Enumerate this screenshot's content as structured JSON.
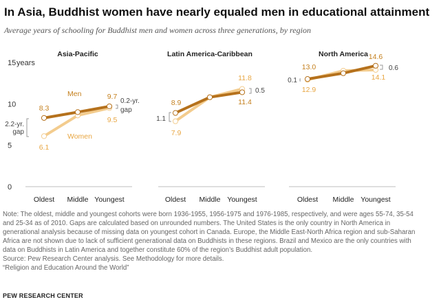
{
  "title": "In Asia, Buddhist women have nearly equaled men in educational attainment",
  "subtitle": "Average years of schooling for Buddhist men and women across three generations, by region",
  "colors": {
    "men": "#b5711c",
    "women": "#f3cc8e",
    "men_label": "#c47f1c",
    "women_label": "#e8a642",
    "axis": "#bdbdbd"
  },
  "y_tick_labels": [
    "15",
    "10",
    "5",
    "0"
  ],
  "y_unit": "years",
  "chart_data": {
    "type": "line",
    "ylim": [
      0,
      15
    ],
    "categories": [
      "Oldest",
      "Middle",
      "Youngest"
    ],
    "panels": [
      {
        "title": "Asia-Pacific",
        "series": [
          {
            "name": "Men",
            "values": [
              8.3,
              9.0,
              9.7
            ],
            "labels": [
              "8.3",
              "",
              "9.7"
            ]
          },
          {
            "name": "Women",
            "values": [
              6.1,
              8.6,
              9.5
            ],
            "labels": [
              "6.1",
              "",
              "9.5"
            ]
          }
        ],
        "annotations": [
          "2.2-yr.",
          "gap",
          "0.2-yr.",
          "gap"
        ]
      },
      {
        "title": "Latin America-Caribbean",
        "series": [
          {
            "name": "Men",
            "values": [
              8.9,
              10.8,
              11.4
            ],
            "labels": [
              "8.9",
              "",
              "11.4"
            ]
          },
          {
            "name": "Women",
            "values": [
              7.9,
              10.8,
              11.8
            ],
            "labels": [
              "7.9",
              "",
              "11.8"
            ]
          }
        ],
        "annotations": [
          "1.1",
          "0.5"
        ]
      },
      {
        "title": "North America",
        "series": [
          {
            "name": "Men",
            "values": [
              13.0,
              13.7,
              14.6
            ],
            "labels": [
              "13.0",
              "",
              "14.6"
            ]
          },
          {
            "name": "Women",
            "values": [
              12.9,
              14.0,
              14.1
            ],
            "labels": [
              "12.9",
              "",
              "14.1"
            ]
          }
        ],
        "annotations": [
          "0.1",
          "0.6"
        ]
      }
    ]
  },
  "note_lines": [
    "Note: The oldest, middle and youngest cohorts were born 1936-1955, 1956-1975 and 1976-1985, respectively, and were ages 55-74, 35-54",
    "and 25-34 as of 2010. Gaps are calculated based on unrounded numbers. The United States is the only country in North America in",
    "generational analysis because of missing data on youngest cohort in Canada. Europe, the Middle East-North Africa region and sub-Saharan",
    "Africa are not shown due to lack of sufficient generational data on Buddhists in these regions. Brazil and Mexico are the only countries with",
    "data on Buddhists in Latin America and together constitute 60% of the region’s Buddhist adult population.",
    "Source: Pew Research Center analysis. See Methodology for more details.",
    "“Religion and Education Around the World”"
  ],
  "source": "PEW RESEARCH CENTER"
}
